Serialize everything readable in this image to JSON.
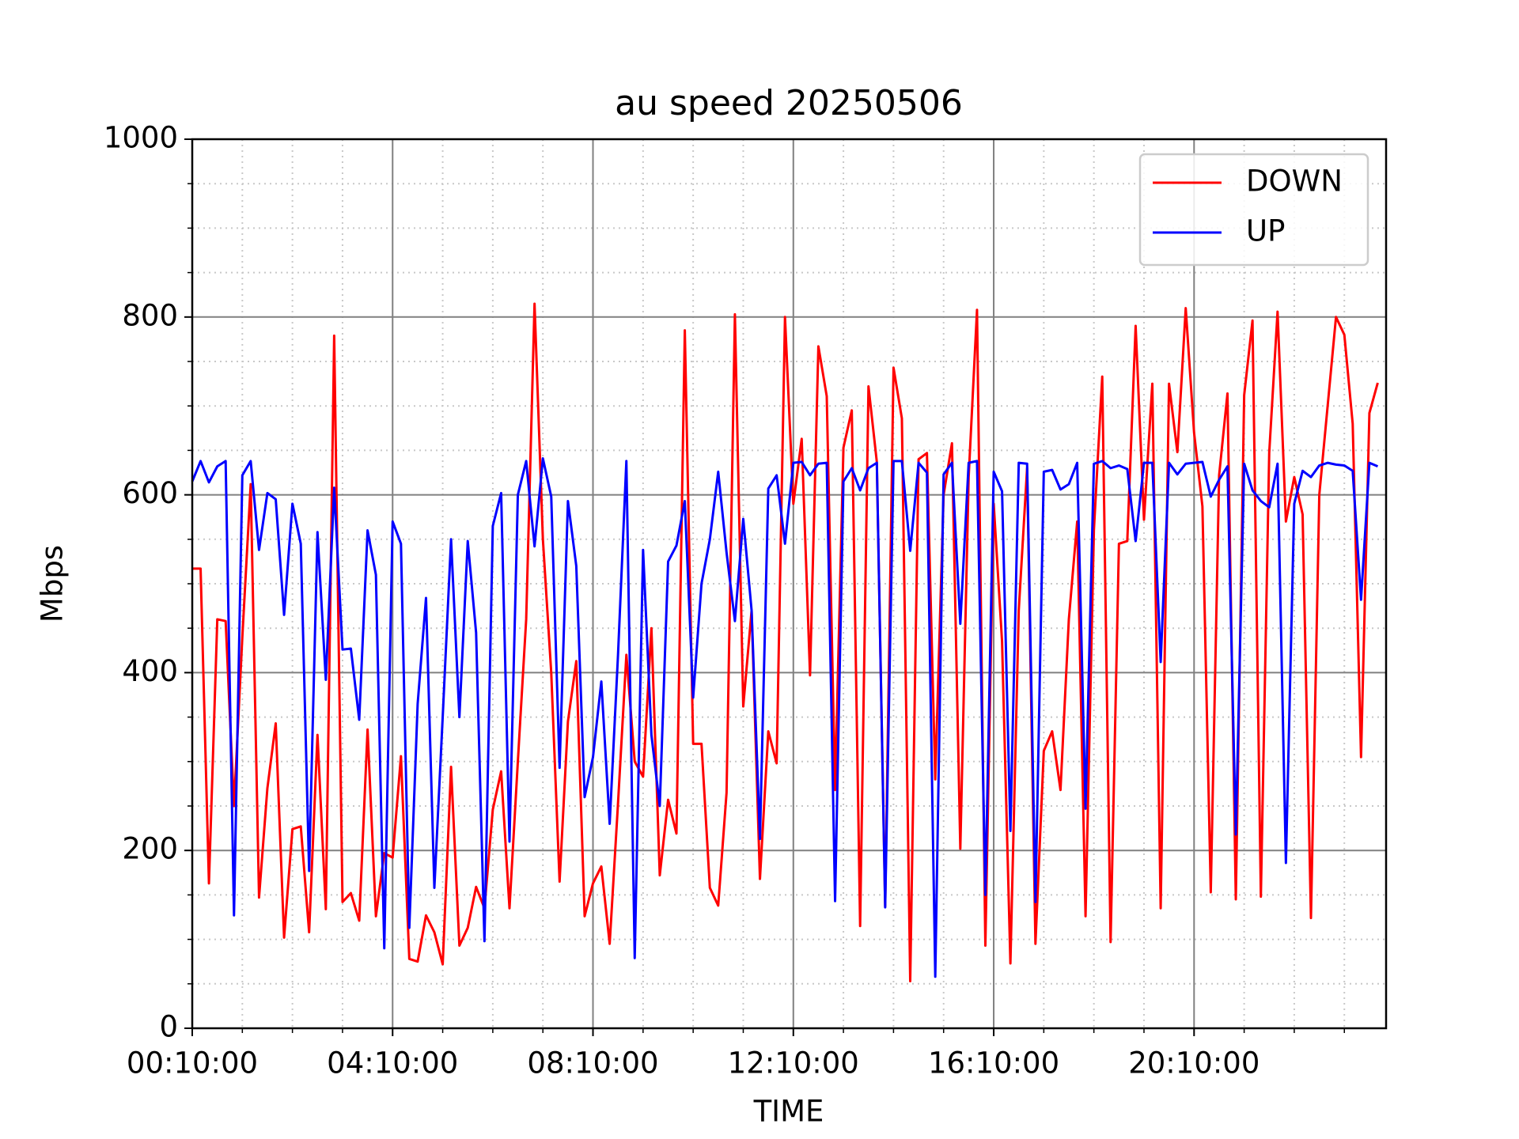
{
  "chart_data": {
    "type": "line",
    "title": "au speed 20250506",
    "x_label": "TIME",
    "y_label": "Mbps",
    "x": [
      "00:10:00",
      "00:20:00",
      "00:30:00",
      "00:40:00",
      "00:50:00",
      "01:00:00",
      "01:10:00",
      "01:20:00",
      "01:30:00",
      "01:40:00",
      "01:50:00",
      "02:00:00",
      "02:10:00",
      "02:20:00",
      "02:30:00",
      "02:40:00",
      "02:50:00",
      "03:00:00",
      "03:10:00",
      "03:20:00",
      "03:30:00",
      "03:40:00",
      "03:50:00",
      "04:00:00",
      "04:10:00",
      "04:20:00",
      "04:30:00",
      "04:40:00",
      "04:50:00",
      "05:00:00",
      "05:10:00",
      "05:20:00",
      "05:30:00",
      "05:40:00",
      "05:50:00",
      "06:00:00",
      "06:10:00",
      "06:20:00",
      "06:30:00",
      "06:40:00",
      "06:50:00",
      "07:00:00",
      "07:10:00",
      "07:20:00",
      "07:30:00",
      "07:40:00",
      "07:50:00",
      "08:00:00",
      "08:10:00",
      "08:20:00",
      "08:30:00",
      "08:40:00",
      "08:50:00",
      "09:00:00",
      "09:10:00",
      "09:20:00",
      "09:30:00",
      "09:40:00",
      "09:50:00",
      "10:00:00",
      "10:10:00",
      "10:20:00",
      "10:30:00",
      "10:40:00",
      "10:50:00",
      "11:00:00",
      "11:10:00",
      "11:20:00",
      "11:30:00",
      "11:40:00",
      "11:50:00",
      "12:00:00",
      "12:10:00",
      "12:20:00",
      "12:30:00",
      "12:40:00",
      "12:50:00",
      "13:00:00",
      "13:10:00",
      "13:20:00",
      "13:30:00",
      "13:40:00",
      "13:50:00",
      "14:00:00",
      "14:10:00",
      "14:20:00",
      "14:30:00",
      "14:40:00",
      "14:50:00",
      "15:00:00",
      "15:10:00",
      "15:20:00",
      "15:30:00",
      "15:40:00",
      "15:50:00",
      "16:00:00",
      "16:10:00",
      "16:20:00",
      "16:30:00",
      "16:40:00",
      "16:50:00",
      "17:00:00",
      "17:10:00",
      "17:20:00",
      "17:30:00",
      "17:40:00",
      "17:50:00",
      "18:00:00",
      "18:10:00",
      "18:20:00",
      "18:30:00",
      "18:40:00",
      "18:50:00",
      "19:00:00",
      "19:10:00",
      "19:20:00",
      "19:30:00",
      "19:40:00",
      "19:50:00",
      "20:00:00",
      "20:10:00",
      "20:20:00",
      "20:30:00",
      "20:40:00",
      "20:50:00",
      "21:00:00",
      "21:10:00",
      "21:20:00",
      "21:30:00",
      "21:40:00",
      "21:50:00",
      "22:00:00",
      "22:10:00",
      "22:20:00",
      "22:30:00",
      "22:40:00",
      "22:50:00",
      "23:00:00",
      "23:10:00",
      "23:20:00",
      "23:30:00",
      "23:40:00",
      "23:50:00"
    ],
    "series": [
      {
        "name": "DOWN",
        "color": "#ff0000",
        "values": [
          517,
          517,
          163,
          460,
          458,
          250,
          440,
          612,
          147,
          270,
          343,
          102,
          224,
          227,
          108,
          330,
          134,
          779,
          142,
          152,
          121,
          336,
          126,
          197,
          192,
          306,
          78,
          75,
          127,
          108,
          72,
          294,
          93,
          113,
          159,
          135,
          246,
          289,
          135,
          300,
          460,
          815,
          550,
          400,
          165,
          345,
          413,
          126,
          163,
          182,
          95,
          253,
          420,
          300,
          283,
          450,
          172,
          257,
          219,
          785,
          320,
          320,
          158,
          138,
          265,
          803,
          362,
          470,
          168,
          334,
          298,
          800,
          590,
          663,
          397,
          767,
          711,
          268,
          653,
          695,
          115,
          722,
          637,
          137,
          743,
          686,
          53,
          640,
          647,
          280,
          600,
          658,
          202,
          620,
          808,
          93,
          590,
          435,
          73,
          470,
          630,
          95,
          312,
          334,
          268,
          460,
          570,
          126,
          560,
          733,
          97,
          545,
          548,
          790,
          572,
          725,
          135,
          725,
          648,
          810,
          670,
          587,
          153,
          622,
          714,
          145,
          712,
          796,
          148,
          647,
          806,
          570,
          620,
          578,
          124,
          600,
          700,
          800,
          780,
          680,
          305,
          692,
          726
        ]
      },
      {
        "name": "UP",
        "color": "#0000ff",
        "values": [
          615,
          638,
          614,
          632,
          638,
          127,
          622,
          638,
          538,
          602,
          595,
          465,
          590,
          545,
          177,
          558,
          392,
          608,
          426,
          427,
          347,
          560,
          510,
          90,
          570,
          545,
          113,
          365,
          484,
          158,
          350,
          550,
          350,
          548,
          445,
          98,
          565,
          602,
          210,
          600,
          638,
          542,
          641,
          598,
          293,
          593,
          520,
          260,
          305,
          390,
          230,
          420,
          638,
          79,
          538,
          330,
          250,
          525,
          543,
          593,
          372,
          500,
          550,
          626,
          535,
          458,
          573,
          470,
          213,
          607,
          622,
          545,
          636,
          637,
          622,
          635,
          636,
          143,
          615,
          630,
          605,
          630,
          636,
          136,
          638,
          638,
          537,
          636,
          625,
          58,
          623,
          636,
          455,
          636,
          638,
          150,
          626,
          604,
          222,
          636,
          635,
          142,
          626,
          628,
          606,
          612,
          636,
          247,
          635,
          638,
          630,
          633,
          629,
          548,
          636,
          636,
          412,
          636,
          623,
          635,
          636,
          637,
          598,
          617,
          632,
          218,
          635,
          605,
          593,
          586,
          635,
          186,
          590,
          627,
          620,
          633,
          636,
          634,
          633,
          627,
          482,
          636,
          632
        ]
      }
    ],
    "xlim": [
      "00:10:00",
      "24:00:00"
    ],
    "xticks": [
      "00:10:00",
      "04:10:00",
      "08:10:00",
      "12:10:00",
      "16:10:00",
      "20:10:00"
    ],
    "xminorticks": [
      "01:10:00",
      "02:10:00",
      "03:10:00",
      "05:10:00",
      "06:10:00",
      "07:10:00",
      "09:10:00",
      "10:10:00",
      "11:10:00",
      "13:10:00",
      "14:10:00",
      "15:10:00",
      "17:10:00",
      "18:10:00",
      "19:10:00",
      "21:10:00",
      "22:10:00",
      "23:10:00"
    ],
    "ylim": [
      0,
      1000
    ],
    "yticks": [
      0,
      200,
      400,
      600,
      800,
      1000
    ],
    "yminorticks": [
      50,
      100,
      150,
      250,
      300,
      350,
      450,
      500,
      550,
      650,
      700,
      750,
      850,
      900,
      950
    ],
    "grid": true,
    "minor_grid": true,
    "legend": "upper right"
  }
}
